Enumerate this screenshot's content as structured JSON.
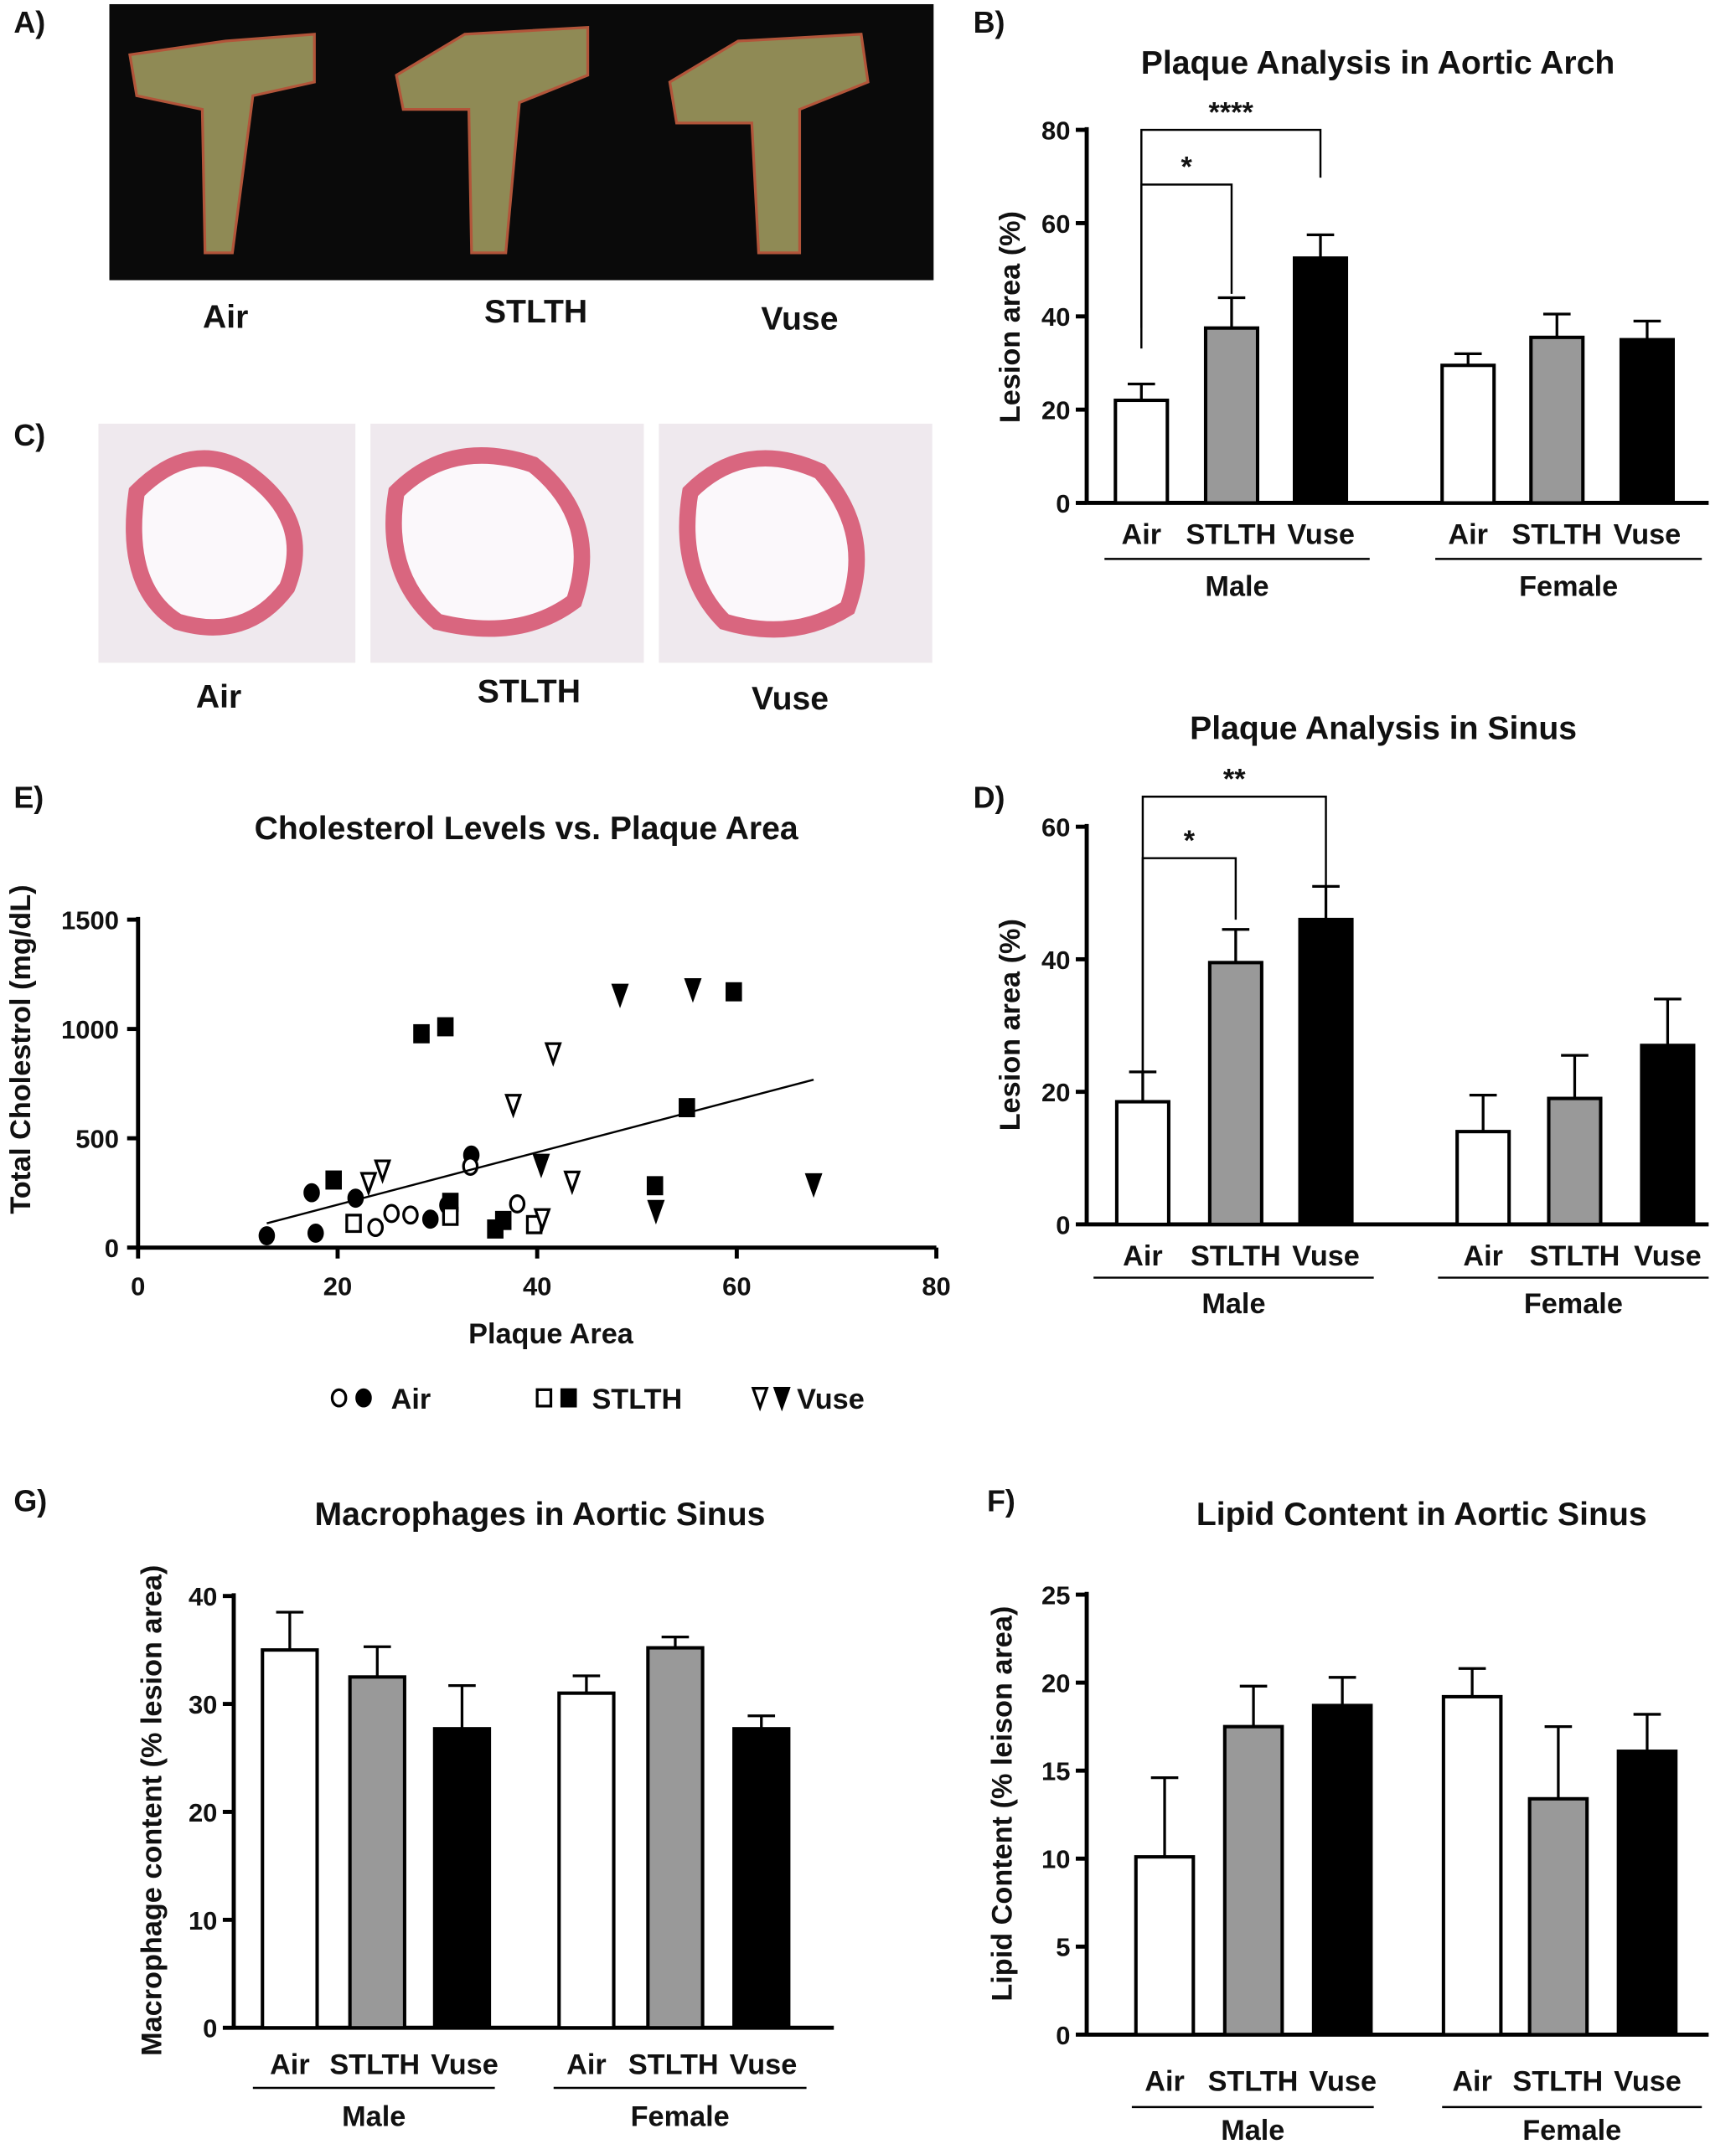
{
  "panels": {
    "A": {
      "letter": "A)",
      "labels": [
        "Air",
        "STLTH",
        "Vuse"
      ]
    },
    "C": {
      "letter": "C)",
      "labels": [
        "Air",
        "STLTH",
        "Vuse"
      ]
    }
  },
  "chart_data": [
    {
      "id": "B",
      "letter": "B)",
      "type": "bar",
      "title": "Plaque Analysis in Aortic Arch",
      "ylabel": "Lesion area (%)",
      "ylim": [
        0,
        80
      ],
      "yticks": [
        0,
        20,
        40,
        60,
        80
      ],
      "groups": [
        "Male",
        "Female"
      ],
      "categories": [
        "Air",
        "STLTH",
        "Vuse"
      ],
      "colors": [
        "#ffffff",
        "#999999",
        "#000000"
      ],
      "values": [
        [
          22,
          37.5,
          52.5
        ],
        [
          29.5,
          35.5,
          35
        ]
      ],
      "errors": [
        [
          3.5,
          6.5,
          5
        ],
        [
          2.5,
          5,
          4
        ]
      ],
      "significance": [
        {
          "from": "Air",
          "to": "STLTH",
          "label": "*"
        },
        {
          "from": "Air",
          "to": "Vuse",
          "label": "****"
        }
      ]
    },
    {
      "id": "D",
      "letter": "D)",
      "type": "bar",
      "title": "Plaque Analysis in Sinus",
      "ylabel": "Lesion area (%)",
      "ylim": [
        0,
        60
      ],
      "yticks": [
        0,
        20,
        40,
        60
      ],
      "groups": [
        "Male",
        "Female"
      ],
      "categories": [
        "Air",
        "STLTH",
        "Vuse"
      ],
      "colors": [
        "#ffffff",
        "#999999",
        "#000000"
      ],
      "values": [
        [
          18.5,
          39.5,
          46
        ],
        [
          14,
          19,
          27
        ]
      ],
      "errors": [
        [
          4.5,
          5,
          5
        ],
        [
          5.5,
          6.5,
          7
        ]
      ],
      "significance": [
        {
          "from": "Air",
          "to": "STLTH",
          "label": "*"
        },
        {
          "from": "Air",
          "to": "Vuse",
          "label": "**"
        }
      ]
    },
    {
      "id": "E",
      "letter": "E)",
      "type": "scatter",
      "title": "Cholesterol Levels vs. Plaque Area",
      "xlabel": "Plaque Area",
      "ylabel": "Total Cholestrol (mg/dL)",
      "xlim": [
        0,
        80
      ],
      "xticks": [
        0,
        20,
        40,
        60,
        80
      ],
      "ylim": [
        0,
        1500
      ],
      "yticks": [
        0,
        500,
        1000,
        1500
      ],
      "series": [
        {
          "name": "Air",
          "marker": "circle",
          "filled": true,
          "points": [
            [
              12.9,
              54
            ],
            [
              17.8,
              66
            ],
            [
              17.4,
              251
            ],
            [
              21.8,
              226
            ],
            [
              29.3,
              130
            ],
            [
              31,
              194
            ],
            [
              33.4,
              423
            ]
          ]
        },
        {
          "name": "Air",
          "marker": "circle",
          "filled": false,
          "points": [
            [
              23.8,
              92
            ],
            [
              25.4,
              156
            ],
            [
              27.3,
              149
            ],
            [
              33.3,
              372
            ],
            [
              38,
              200
            ]
          ]
        },
        {
          "name": "STLTH",
          "marker": "square",
          "filled": true,
          "points": [
            [
              19.6,
              309
            ],
            [
              28.4,
              978
            ],
            [
              30.8,
              1010
            ],
            [
              31.3,
              207
            ],
            [
              35.8,
              85
            ],
            [
              36.6,
              124
            ],
            [
              55,
              640
            ],
            [
              59.7,
              1170
            ],
            [
              51.8,
              283
            ]
          ]
        },
        {
          "name": "STLTH",
          "marker": "square",
          "filled": false,
          "points": [
            [
              21.6,
              111
            ],
            [
              31.3,
              143
            ],
            [
              39.7,
              105
            ]
          ]
        },
        {
          "name": "Vuse",
          "marker": "triangle-down",
          "filled": true,
          "points": [
            [
              48.3,
              1157
            ],
            [
              55.6,
              1182
            ],
            [
              40.4,
              379
            ],
            [
              51.9,
              168
            ],
            [
              67.7,
              290
            ]
          ]
        },
        {
          "name": "Vuse",
          "marker": "triangle-down",
          "filled": false,
          "points": [
            [
              23.1,
              296
            ],
            [
              24.5,
              353
            ],
            [
              41.6,
              889
            ],
            [
              37.6,
              653
            ],
            [
              43.5,
              302
            ],
            [
              40.5,
              130
            ]
          ]
        }
      ],
      "fit_line": {
        "x": [
          12.9,
          67.7
        ],
        "y": [
          111,
          768
        ]
      },
      "legend": [
        "Air",
        "STLTH",
        "Vuse"
      ],
      "legend_position": "bottom"
    },
    {
      "id": "G",
      "letter": "G)",
      "type": "bar",
      "title": "Macrophages in Aortic Sinus",
      "ylabel": "Macrophage content (% lesion area)",
      "ylim": [
        0,
        40
      ],
      "yticks": [
        0,
        10,
        20,
        30,
        40
      ],
      "groups": [
        "Male",
        "Female"
      ],
      "categories": [
        "Air",
        "STLTH",
        "Vuse"
      ],
      "colors": [
        "#ffffff",
        "#999999",
        "#000000"
      ],
      "values": [
        [
          35,
          32.5,
          27.7
        ],
        [
          31,
          35.2,
          27.7
        ]
      ],
      "errors": [
        [
          3.5,
          2.8,
          4
        ],
        [
          1.6,
          1,
          1.2
        ]
      ],
      "significance": []
    },
    {
      "id": "F",
      "letter": "F)",
      "type": "bar",
      "title": "Lipid Content in Aortic Sinus",
      "ylabel": "Lipid Content (% leison area)",
      "ylim": [
        0,
        25
      ],
      "yticks": [
        0,
        5,
        10,
        15,
        20,
        25
      ],
      "groups": [
        "Male",
        "Female"
      ],
      "categories": [
        "Air",
        "STLTH",
        "Vuse"
      ],
      "colors": [
        "#ffffff",
        "#999999",
        "#000000"
      ],
      "values": [
        [
          10.1,
          17.5,
          18.7
        ],
        [
          19.2,
          13.4,
          16.1
        ]
      ],
      "errors": [
        [
          4.5,
          2.3,
          1.6
        ],
        [
          1.6,
          4.1,
          2.1
        ]
      ],
      "significance": []
    }
  ]
}
